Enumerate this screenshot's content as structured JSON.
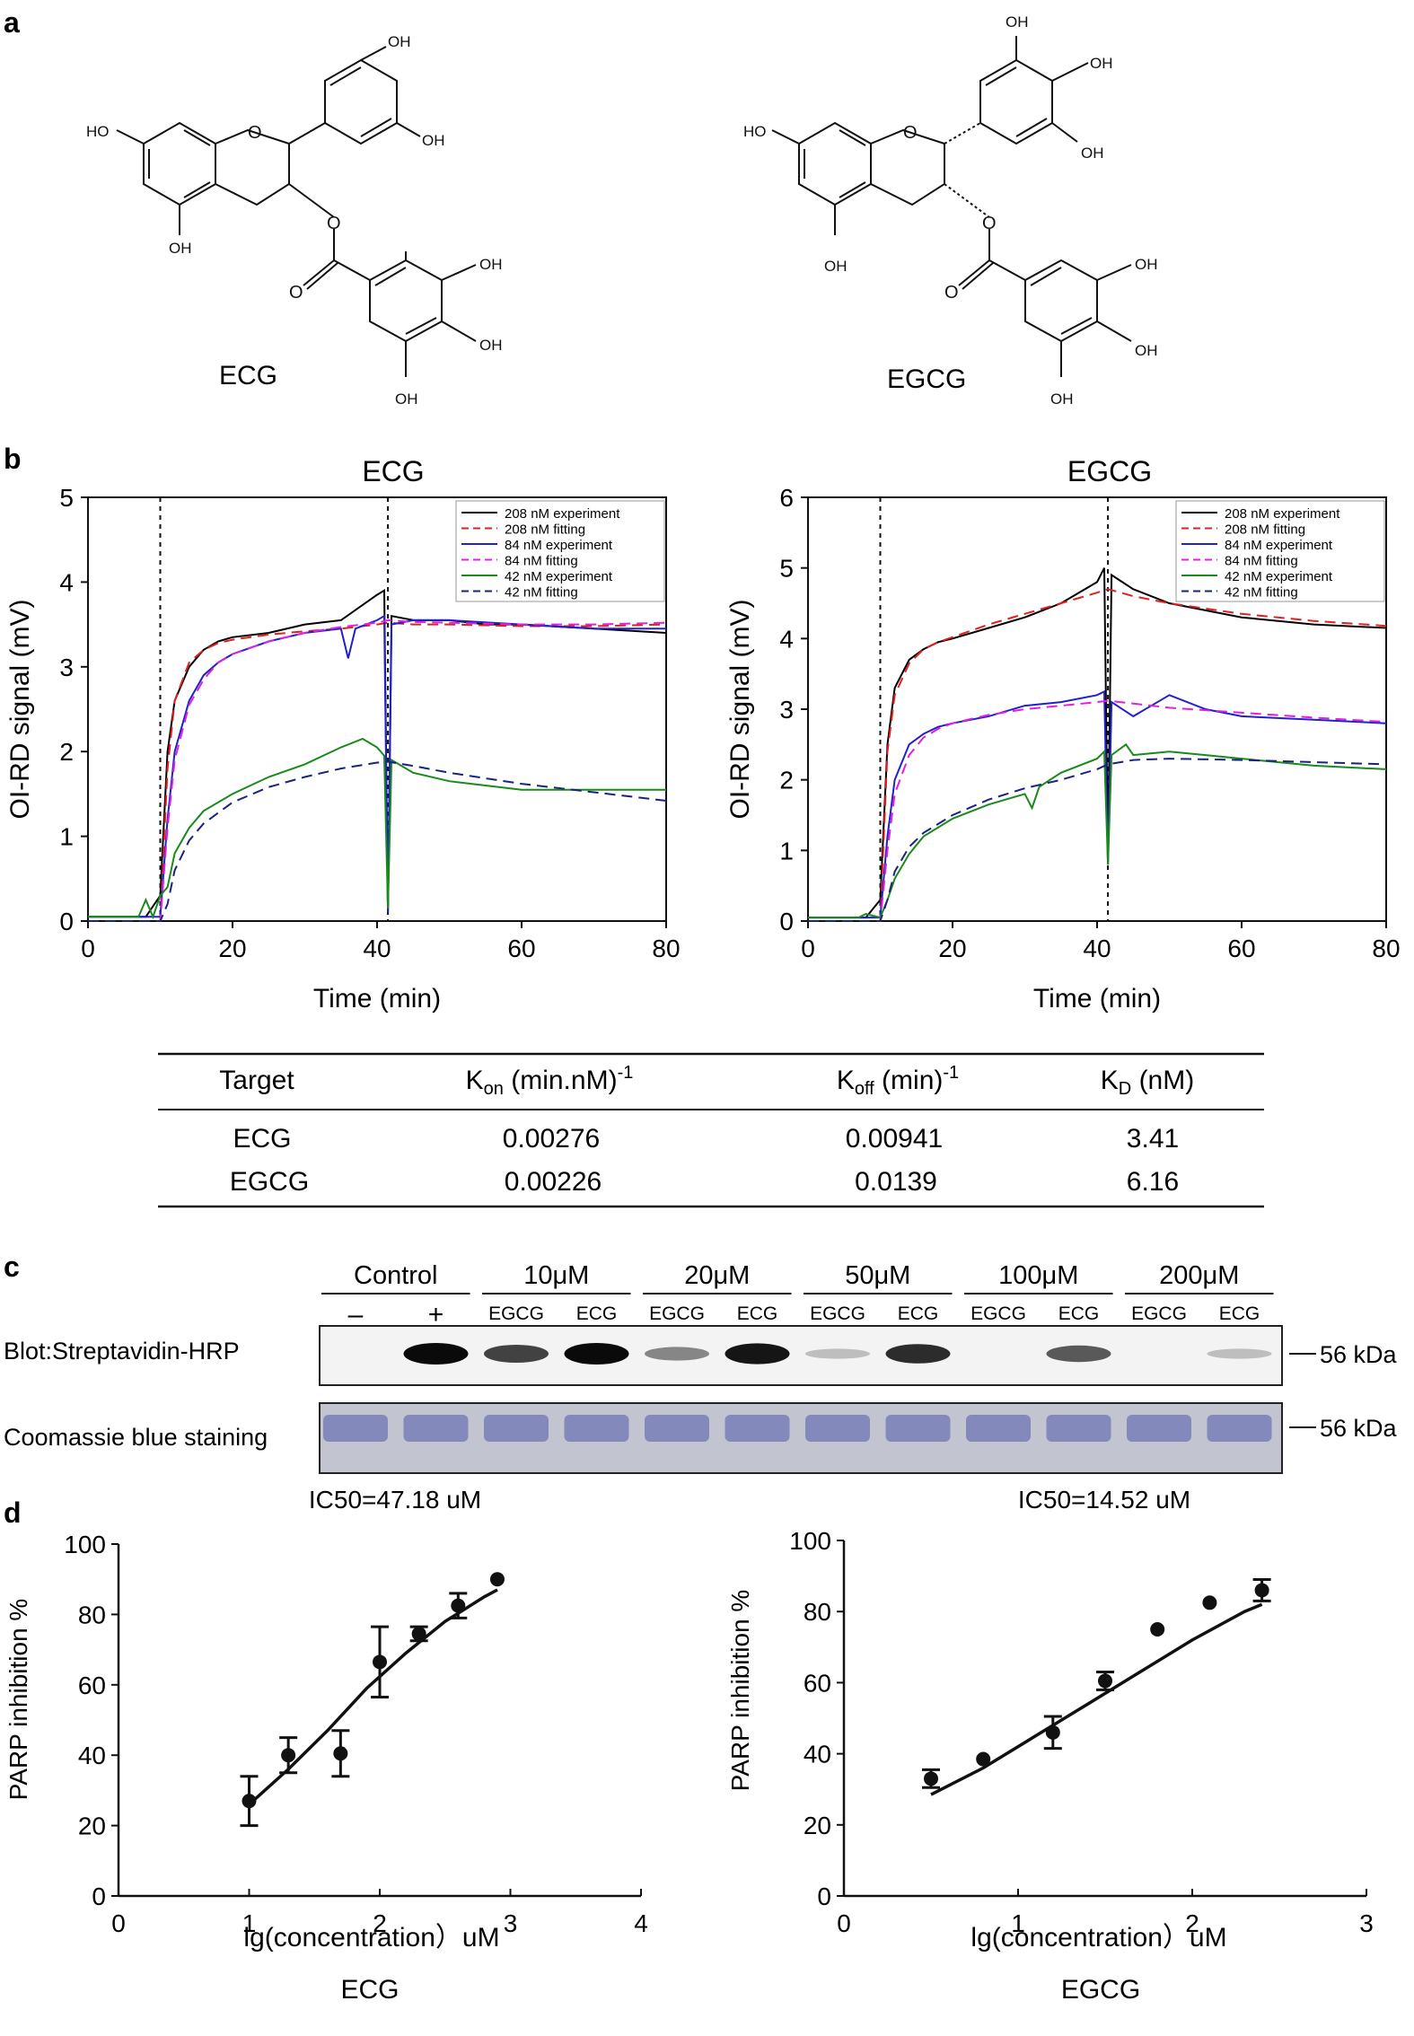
{
  "panels": {
    "a": {
      "letter": "a",
      "molecules": [
        {
          "name": "ECG",
          "oh_labels": [
            "HO",
            "OH",
            "OH",
            "OH",
            "OH",
            "OH",
            "OH"
          ]
        },
        {
          "name": "EGCG",
          "oh_labels": [
            "HO",
            "OH",
            "OH",
            "OH",
            "OH",
            "OH",
            "OH",
            "OH"
          ]
        }
      ]
    },
    "b": {
      "letter": "b"
    },
    "c": {
      "letter": "c"
    },
    "d": {
      "letter": "d"
    }
  },
  "chart_data": [
    {
      "type": "line",
      "title": "ECG",
      "xlabel": "Time (min)",
      "ylabel": "OI-RD signal (mV)",
      "xlim": [
        0,
        80
      ],
      "ylim": [
        0,
        5
      ],
      "xticks": [
        0,
        20,
        40,
        60,
        80
      ],
      "yticks": [
        0,
        1,
        2,
        3,
        4,
        5
      ],
      "vlines": [
        10,
        41.5
      ],
      "legend_position": "top-right",
      "series": [
        {
          "name": "208 nM experiment",
          "color": "#000000",
          "dash": false,
          "x": [
            0,
            8,
            10,
            11,
            12,
            14,
            16,
            18,
            20,
            25,
            30,
            35,
            40,
            41,
            41.5,
            42,
            45,
            50,
            55,
            60,
            70,
            80
          ],
          "y": [
            0.05,
            0.05,
            0.3,
            2.0,
            2.6,
            3.0,
            3.2,
            3.3,
            3.35,
            3.4,
            3.5,
            3.55,
            3.85,
            3.9,
            0.1,
            3.6,
            3.55,
            3.55,
            3.5,
            3.5,
            3.45,
            3.4
          ]
        },
        {
          "name": "208 nM fitting",
          "color": "#e02020",
          "dash": true,
          "x": [
            0,
            10,
            11,
            12,
            14,
            16,
            18,
            20,
            25,
            30,
            35,
            40,
            41.5,
            45,
            50,
            60,
            70,
            80
          ],
          "y": [
            0,
            0,
            1.8,
            2.6,
            3.05,
            3.2,
            3.28,
            3.32,
            3.38,
            3.42,
            3.45,
            3.5,
            3.52,
            3.5,
            3.5,
            3.48,
            3.48,
            3.5
          ]
        },
        {
          "name": "84 nM experiment",
          "color": "#2020cc",
          "dash": false,
          "x": [
            0,
            10,
            11,
            12,
            14,
            16,
            18,
            20,
            25,
            30,
            35,
            36,
            37,
            40,
            41,
            41.5,
            42,
            45,
            50,
            60,
            70,
            80
          ],
          "y": [
            0.05,
            0.05,
            1.2,
            2.0,
            2.6,
            2.9,
            3.05,
            3.15,
            3.3,
            3.4,
            3.45,
            3.1,
            3.45,
            3.55,
            3.6,
            0.1,
            3.5,
            3.55,
            3.55,
            3.5,
            3.45,
            3.45
          ]
        },
        {
          "name": "84 nM fitting",
          "color": "#e020e0",
          "dash": true,
          "x": [
            0,
            10,
            11,
            12,
            14,
            16,
            18,
            20,
            25,
            30,
            35,
            40,
            41.5,
            45,
            50,
            60,
            70,
            80
          ],
          "y": [
            0,
            0,
            1.1,
            1.9,
            2.55,
            2.85,
            3.05,
            3.15,
            3.3,
            3.4,
            3.47,
            3.52,
            3.55,
            3.53,
            3.52,
            3.5,
            3.5,
            3.52
          ]
        },
        {
          "name": "42 nM experiment",
          "color": "#1a8a1a",
          "dash": false,
          "x": [
            0,
            7,
            8,
            9,
            10,
            11,
            12,
            14,
            16,
            20,
            25,
            30,
            35,
            38,
            40,
            41,
            41.5,
            42,
            45,
            50,
            55,
            60,
            70,
            80
          ],
          "y": [
            0.05,
            0.05,
            0.25,
            0.05,
            0.3,
            0.4,
            0.8,
            1.1,
            1.3,
            1.5,
            1.7,
            1.85,
            2.05,
            2.15,
            2.05,
            1.95,
            0.15,
            1.9,
            1.75,
            1.65,
            1.6,
            1.55,
            1.55,
            1.55
          ]
        },
        {
          "name": "42 nM fitting",
          "color": "#1a237e",
          "dash": true,
          "x": [
            0,
            10,
            11,
            12,
            14,
            16,
            20,
            25,
            30,
            35,
            40,
            41.5,
            45,
            50,
            60,
            70,
            80
          ],
          "y": [
            0,
            0,
            0.2,
            0.6,
            0.95,
            1.15,
            1.4,
            1.58,
            1.7,
            1.8,
            1.87,
            1.88,
            1.83,
            1.75,
            1.62,
            1.52,
            1.42
          ]
        }
      ]
    },
    {
      "type": "line",
      "title": "EGCG",
      "xlabel": "Time (min)",
      "ylabel": "OI-RD signal (mV)",
      "xlim": [
        0,
        80
      ],
      "ylim": [
        0,
        6
      ],
      "xticks": [
        0,
        20,
        40,
        60,
        80
      ],
      "yticks": [
        0,
        1,
        2,
        3,
        4,
        5,
        6
      ],
      "vlines": [
        10,
        41.5
      ],
      "legend_position": "top-right",
      "series": [
        {
          "name": "208 nM experiment",
          "color": "#000000",
          "dash": false,
          "x": [
            0,
            8,
            10,
            11,
            12,
            14,
            16,
            18,
            20,
            25,
            30,
            35,
            40,
            41,
            41.5,
            42,
            45,
            50,
            55,
            60,
            70,
            80
          ],
          "y": [
            0.05,
            0.05,
            0.3,
            2.5,
            3.3,
            3.7,
            3.85,
            3.95,
            4.0,
            4.15,
            4.3,
            4.5,
            4.8,
            5.0,
            0.9,
            4.9,
            4.7,
            4.5,
            4.4,
            4.3,
            4.2,
            4.15
          ]
        },
        {
          "name": "208 nM fitting",
          "color": "#e02020",
          "dash": true,
          "x": [
            0,
            10,
            11,
            12,
            14,
            16,
            18,
            20,
            25,
            30,
            35,
            40,
            41.5,
            45,
            50,
            60,
            70,
            80
          ],
          "y": [
            0,
            0,
            2.4,
            3.2,
            3.65,
            3.85,
            3.95,
            4.02,
            4.2,
            4.35,
            4.5,
            4.65,
            4.7,
            4.6,
            4.5,
            4.35,
            4.25,
            4.18
          ]
        },
        {
          "name": "84 nM experiment",
          "color": "#2020cc",
          "dash": false,
          "x": [
            0,
            10,
            11,
            12,
            14,
            16,
            18,
            20,
            25,
            30,
            35,
            40,
            41,
            41.5,
            42,
            45,
            50,
            55,
            60,
            70,
            80
          ],
          "y": [
            0.05,
            0.05,
            1.2,
            2.0,
            2.5,
            2.65,
            2.75,
            2.8,
            2.9,
            3.05,
            3.1,
            3.2,
            3.25,
            0.8,
            3.1,
            2.9,
            3.2,
            3.0,
            2.9,
            2.85,
            2.8
          ]
        },
        {
          "name": "84 nM fitting",
          "color": "#e020e0",
          "dash": true,
          "x": [
            0,
            10,
            11,
            12,
            14,
            16,
            18,
            20,
            25,
            30,
            35,
            40,
            41.5,
            45,
            50,
            60,
            70,
            80
          ],
          "y": [
            0,
            0,
            1.0,
            1.8,
            2.35,
            2.6,
            2.72,
            2.8,
            2.92,
            3.0,
            3.05,
            3.1,
            3.12,
            3.08,
            3.02,
            2.95,
            2.88,
            2.82
          ]
        },
        {
          "name": "42 nM experiment",
          "color": "#1a8a1a",
          "dash": false,
          "x": [
            0,
            7,
            8,
            10,
            11,
            12,
            14,
            16,
            20,
            25,
            30,
            31,
            32,
            35,
            40,
            41,
            41.5,
            42,
            44,
            45,
            50,
            55,
            60,
            70,
            80
          ],
          "y": [
            0.05,
            0.05,
            0.1,
            0.05,
            0.3,
            0.6,
            0.95,
            1.2,
            1.45,
            1.65,
            1.8,
            1.6,
            1.9,
            2.1,
            2.3,
            2.4,
            0.8,
            2.35,
            2.5,
            2.35,
            2.4,
            2.35,
            2.3,
            2.2,
            2.15
          ]
        },
        {
          "name": "42 nM fitting",
          "color": "#1a237e",
          "dash": true,
          "x": [
            0,
            10,
            11,
            12,
            14,
            16,
            20,
            25,
            30,
            35,
            40,
            41.5,
            45,
            50,
            60,
            70,
            80
          ],
          "y": [
            0,
            0,
            0.3,
            0.7,
            1.05,
            1.25,
            1.5,
            1.72,
            1.88,
            2.0,
            2.15,
            2.22,
            2.28,
            2.3,
            2.28,
            2.25,
            2.22
          ]
        }
      ]
    },
    {
      "type": "table",
      "columns": [
        "Target",
        "Kon (min.nM)-1",
        "Koff (min)-1",
        "KD (nM)"
      ],
      "rows": [
        [
          "ECG",
          "0.00276",
          "0.00941",
          "3.41"
        ],
        [
          "EGCG",
          "0.00226",
          "0.0139",
          "6.16"
        ]
      ]
    },
    {
      "type": "blot",
      "groups": [
        {
          "label": "Control",
          "lanes": [
            "–",
            "+"
          ]
        },
        {
          "label": "10μM",
          "lanes": [
            "EGCG",
            "ECG"
          ]
        },
        {
          "label": "20μM",
          "lanes": [
            "EGCG",
            "ECG"
          ]
        },
        {
          "label": "50μM",
          "lanes": [
            "EGCG",
            "ECG"
          ]
        },
        {
          "label": "100μM",
          "lanes": [
            "EGCG",
            "ECG"
          ]
        },
        {
          "label": "200μM",
          "lanes": [
            "EGCG",
            "ECG"
          ]
        }
      ],
      "rows": [
        {
          "label": "Blot:Streptavidin-HRP",
          "marker": "56 kDa",
          "band_intensity": [
            0,
            1.0,
            0.75,
            1.0,
            0.45,
            0.95,
            0.2,
            0.85,
            0,
            0.65,
            0,
            0.2
          ]
        },
        {
          "label": "Coomassie blue staining",
          "marker": "56 kDa",
          "band_intensity": [
            1,
            1,
            1,
            1,
            1,
            1,
            1,
            1,
            1,
            1,
            1,
            1
          ]
        }
      ]
    },
    {
      "type": "scatter",
      "title": "IC50=47.18 uM",
      "xlabel": "lg(concentration）uM",
      "ylabel": "PARP inhibition %",
      "caption": "ECG",
      "xlim": [
        0,
        4
      ],
      "ylim": [
        0,
        100
      ],
      "xticks": [
        0,
        1,
        2,
        3,
        4
      ],
      "yticks": [
        0,
        20,
        40,
        60,
        80,
        100
      ],
      "points": {
        "x": [
          1.0,
          1.3,
          1.7,
          2.0,
          2.3,
          2.6,
          2.9
        ],
        "y": [
          27,
          40,
          40.5,
          66.5,
          74.5,
          82.5,
          90
        ],
        "err": [
          7,
          5,
          6.5,
          10,
          2,
          3.5,
          0
        ]
      },
      "fit": {
        "x": [
          1.0,
          1.3,
          1.6,
          1.9,
          2.2,
          2.5,
          2.8,
          2.9
        ],
        "y": [
          26,
          36,
          47,
          59,
          69,
          78,
          85,
          87
        ]
      }
    },
    {
      "type": "scatter",
      "title": "IC50=14.52 uM",
      "xlabel": "lg(concentration）uM",
      "ylabel": "PARP inhibition %",
      "caption": "EGCG",
      "xlim": [
        0,
        3
      ],
      "ylim": [
        0,
        100
      ],
      "xticks": [
        0,
        1,
        2,
        3
      ],
      "yticks": [
        0,
        20,
        40,
        60,
        80,
        100
      ],
      "points": {
        "x": [
          0.5,
          0.8,
          1.2,
          1.5,
          1.8,
          2.1,
          2.4
        ],
        "y": [
          33,
          38.5,
          46,
          60.5,
          75,
          82.5,
          86
        ],
        "err": [
          2.5,
          0,
          4.5,
          2.5,
          0,
          0,
          3
        ]
      },
      "fit": {
        "x": [
          0.5,
          0.8,
          1.1,
          1.4,
          1.7,
          2.0,
          2.3,
          2.4
        ],
        "y": [
          28.5,
          36,
          45,
          54,
          63,
          72,
          80,
          82
        ]
      }
    }
  ]
}
